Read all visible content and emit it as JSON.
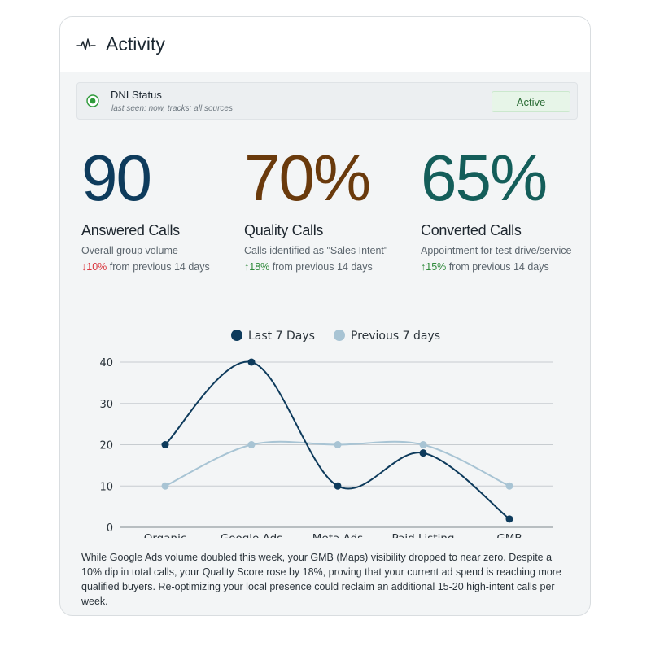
{
  "card": {
    "title": "Activity",
    "icon": "activity-pulse-icon"
  },
  "dni": {
    "title": "DNI Status",
    "subtitle": "last seen: now, tracks: all sources",
    "badge": "Active",
    "status_color": "#2e9a3a"
  },
  "metrics": [
    {
      "value": "90",
      "label": "Answered Calls",
      "description": "Overall group volume",
      "trend_arrow": "↓",
      "trend_value": "10%",
      "trend_text": " from previous 14 days",
      "direction": "down",
      "color": "#0e3b5c"
    },
    {
      "value": "70%",
      "label": "Quality Calls",
      "description": "Calls identified as \"Sales Intent\"",
      "trend_arrow": "↑",
      "trend_value": "18%",
      "trend_text": " from previous 14 days",
      "direction": "up",
      "color": "#6a3a0c"
    },
    {
      "value": "65%",
      "label": "Converted Calls",
      "description": "Appointment for test drive/service",
      "trend_arrow": "↑",
      "trend_value": "15%",
      "trend_text": " from previous 14 days",
      "direction": "up",
      "color": "#145e5a"
    }
  ],
  "chart_data": {
    "type": "line",
    "categories": [
      "Organic",
      "Google Ads",
      "Meta Ads",
      "Paid Listing",
      "GMB"
    ],
    "series": [
      {
        "name": "Last 7 Days",
        "values": [
          20,
          40,
          10,
          18,
          2
        ],
        "color": "#0e3b5c"
      },
      {
        "name": "Previous 7 days",
        "values": [
          10,
          20,
          20,
          20,
          10
        ],
        "color": "#a8c4d4"
      }
    ],
    "yticks": [
      0,
      10,
      20,
      30,
      40
    ],
    "ylim": [
      0,
      40
    ],
    "grid": true,
    "legend": "top-center",
    "smooth": true
  },
  "summary": "While Google Ads volume doubled this week, your GMB (Maps) visibility dropped to near zero. Despite a 10% dip in total calls, your Quality Score rose by 18%, proving that your current ad spend is reaching more qualified buyers. Re-optimizing your local presence could reclaim an additional 15-20 high-intent calls per week."
}
